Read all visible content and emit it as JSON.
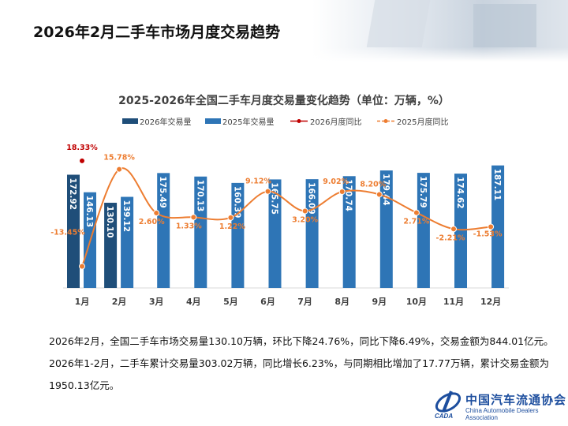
{
  "page_title": "2026年2月二手车市场月度交易趋势",
  "paragraphs": [
    "2026年2月，全国二手车市场交易量130.10万辆，环比下降24.76%，同比下降6.49%，交易金额为844.01亿元。",
    "2026年1-2月，二手车累计交易量303.02万辆，同比增长6.23%，与同期相比增加了17.77万辆，累计交易金额为",
    "1950.13亿元。"
  ],
  "logo": {
    "cn": "中国汽车流通协会",
    "en": "China Automobile Dealers Association",
    "mark": "CADA"
  },
  "chart_data": {
    "type": "bar+line",
    "title": "2025-2026年全国二手车月度交易量变化趋势（单位：万辆，%）",
    "categories": [
      "1月",
      "2月",
      "3月",
      "4月",
      "5月",
      "6月",
      "7月",
      "8月",
      "9月",
      "10月",
      "11月",
      "12月"
    ],
    "legend_position": "top",
    "grid": false,
    "series": [
      {
        "name": "2026年交易量",
        "kind": "bar",
        "color": "#1f4e79",
        "values": [
          172.92,
          130.1,
          null,
          null,
          null,
          null,
          null,
          null,
          null,
          null,
          null,
          null
        ]
      },
      {
        "name": "2025年交易量",
        "kind": "bar",
        "color": "#2e75b6",
        "values": [
          146.13,
          139.12,
          175.49,
          170.13,
          160.39,
          165.75,
          166.09,
          170.74,
          179.44,
          175.79,
          174.62,
          187.11
        ]
      },
      {
        "name": "2026月度同比",
        "kind": "line",
        "color": "#c00000",
        "values": [
          18.33,
          null,
          null,
          null,
          null,
          null,
          null,
          null,
          null,
          null,
          null,
          null
        ]
      },
      {
        "name": "2025月度同比",
        "kind": "line",
        "color": "#ed7d31",
        "values": [
          -13.45,
          15.78,
          2.6,
          1.33,
          1.22,
          9.12,
          3.2,
          9.02,
          8.2,
          2.71,
          -2.21,
          -1.53
        ]
      }
    ]
  }
}
